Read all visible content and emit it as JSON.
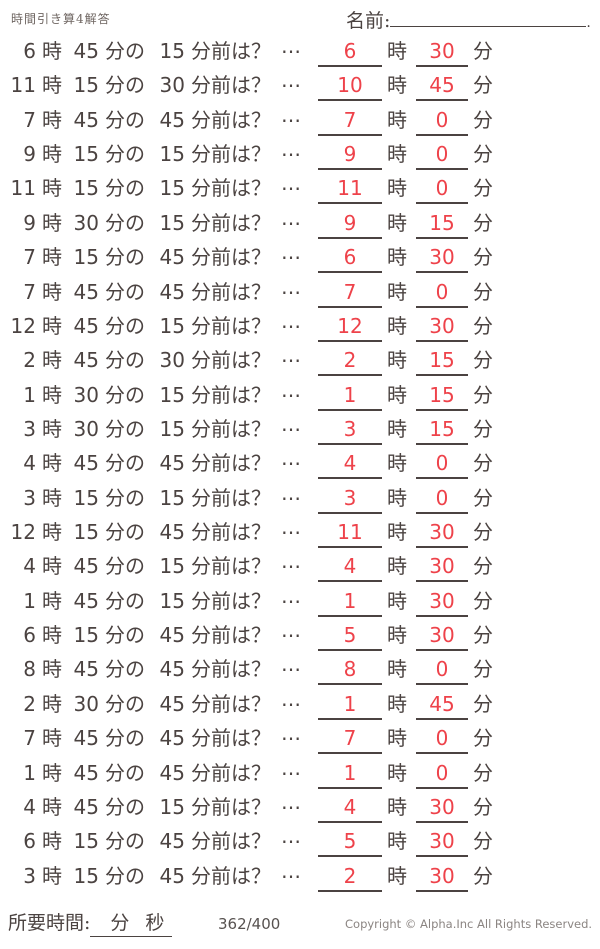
{
  "header": {
    "title": "時間引き算4解答",
    "name_label": "名前:",
    "name_line_end": "."
  },
  "labels": {
    "hour_unit": "時",
    "minute_of": "分の",
    "minutes_before_q": "分前は？",
    "dots": "…",
    "minute_unit": "分"
  },
  "problems": [
    {
      "hour": "6",
      "minute": "45",
      "before": "15",
      "ans_hour": "6",
      "ans_min": "30"
    },
    {
      "hour": "11",
      "minute": "15",
      "before": "30",
      "ans_hour": "10",
      "ans_min": "45"
    },
    {
      "hour": "7",
      "minute": "45",
      "before": "45",
      "ans_hour": "7",
      "ans_min": "0"
    },
    {
      "hour": "9",
      "minute": "15",
      "before": "15",
      "ans_hour": "9",
      "ans_min": "0"
    },
    {
      "hour": "11",
      "minute": "15",
      "before": "15",
      "ans_hour": "11",
      "ans_min": "0"
    },
    {
      "hour": "9",
      "minute": "30",
      "before": "15",
      "ans_hour": "9",
      "ans_min": "15"
    },
    {
      "hour": "7",
      "minute": "15",
      "before": "45",
      "ans_hour": "6",
      "ans_min": "30"
    },
    {
      "hour": "7",
      "minute": "45",
      "before": "45",
      "ans_hour": "7",
      "ans_min": "0"
    },
    {
      "hour": "12",
      "minute": "45",
      "before": "15",
      "ans_hour": "12",
      "ans_min": "30"
    },
    {
      "hour": "2",
      "minute": "45",
      "before": "30",
      "ans_hour": "2",
      "ans_min": "15"
    },
    {
      "hour": "1",
      "minute": "30",
      "before": "15",
      "ans_hour": "1",
      "ans_min": "15"
    },
    {
      "hour": "3",
      "minute": "30",
      "before": "15",
      "ans_hour": "3",
      "ans_min": "15"
    },
    {
      "hour": "4",
      "minute": "45",
      "before": "45",
      "ans_hour": "4",
      "ans_min": "0"
    },
    {
      "hour": "3",
      "minute": "15",
      "before": "15",
      "ans_hour": "3",
      "ans_min": "0"
    },
    {
      "hour": "12",
      "minute": "15",
      "before": "45",
      "ans_hour": "11",
      "ans_min": "30"
    },
    {
      "hour": "4",
      "minute": "45",
      "before": "15",
      "ans_hour": "4",
      "ans_min": "30"
    },
    {
      "hour": "1",
      "minute": "45",
      "before": "15",
      "ans_hour": "1",
      "ans_min": "30"
    },
    {
      "hour": "6",
      "minute": "15",
      "before": "45",
      "ans_hour": "5",
      "ans_min": "30"
    },
    {
      "hour": "8",
      "minute": "45",
      "before": "45",
      "ans_hour": "8",
      "ans_min": "0"
    },
    {
      "hour": "2",
      "minute": "30",
      "before": "45",
      "ans_hour": "1",
      "ans_min": "45"
    },
    {
      "hour": "7",
      "minute": "45",
      "before": "45",
      "ans_hour": "7",
      "ans_min": "0"
    },
    {
      "hour": "1",
      "minute": "45",
      "before": "45",
      "ans_hour": "1",
      "ans_min": "0"
    },
    {
      "hour": "4",
      "minute": "45",
      "before": "15",
      "ans_hour": "4",
      "ans_min": "30"
    },
    {
      "hour": "6",
      "minute": "15",
      "before": "45",
      "ans_hour": "5",
      "ans_min": "30"
    },
    {
      "hour": "3",
      "minute": "15",
      "before": "45",
      "ans_hour": "2",
      "ans_min": "30"
    }
  ],
  "footer": {
    "time_label": "所要時間:",
    "blank_min_label": "分",
    "blank_sec_label": "秒",
    "score": "362/400",
    "copyright": "Copyright ©  Alpha.Inc All Rights Reserved."
  },
  "colors": {
    "ink": "#4b4341",
    "answer_red": "#ee424a",
    "muted": "#8b8582"
  }
}
